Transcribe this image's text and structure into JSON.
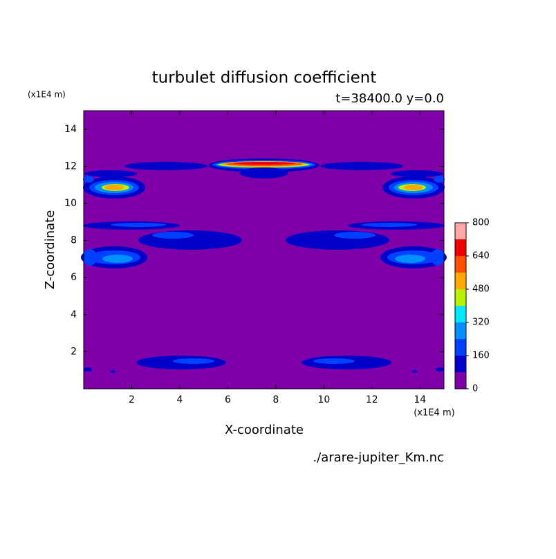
{
  "chart_data": {
    "type": "contour",
    "title": "turbulet diffusion coefficient",
    "subtitle": "t=38400.0 y=0.0",
    "x_label": "X-coordinate",
    "y_label": "Z-coordinate",
    "x_unit": "(x1E4 m)",
    "y_unit": "(x1E4 m)",
    "xlim": [
      0,
      15
    ],
    "ylim": [
      0,
      15
    ],
    "xticks": [
      2,
      4,
      6,
      8,
      10,
      12,
      14
    ],
    "yticks": [
      2,
      4,
      6,
      8,
      10,
      12,
      14
    ],
    "colorbar": {
      "levels": [
        0,
        80,
        160,
        240,
        320,
        400,
        480,
        560,
        640,
        720,
        800
      ],
      "colors": [
        "#7f00a8",
        "#0000c8",
        "#0040ff",
        "#0090ff",
        "#00e8ff",
        "#b8f000",
        "#ffa800",
        "#ff5000",
        "#f00000",
        "#ffa8a8"
      ],
      "ticks": [
        0,
        160,
        320,
        480,
        640,
        800
      ]
    },
    "source": "./arare-jupiter_Km.nc"
  }
}
